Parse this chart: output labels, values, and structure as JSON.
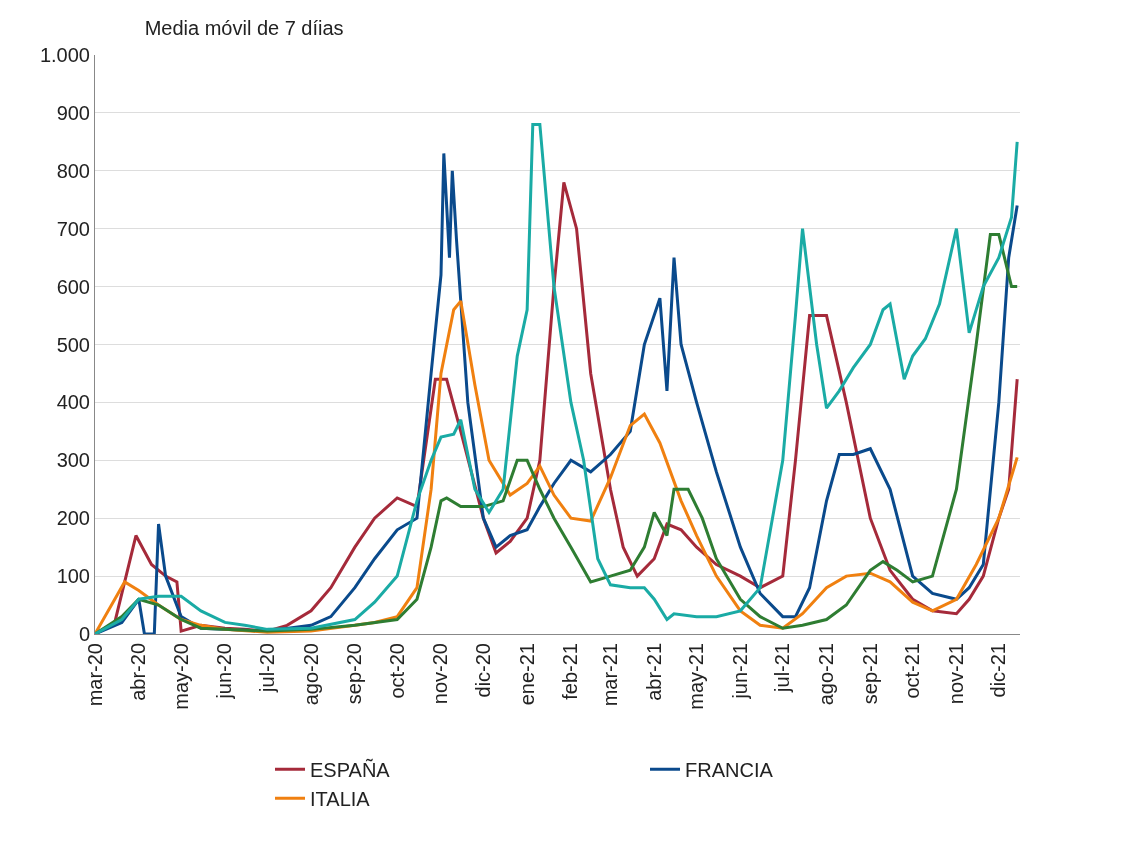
{
  "chart_data": {
    "type": "line",
    "title": "Media móvil de 7 díias",
    "xlim": [
      "2020-03-01",
      "2021-12-16"
    ],
    "xticks": [
      {
        "value": "2020-03-01",
        "label": "mar-20"
      },
      {
        "value": "2020-04-01",
        "label": "abr-20"
      },
      {
        "value": "2020-05-01",
        "label": "may-20"
      },
      {
        "value": "2020-06-01",
        "label": "jun-20"
      },
      {
        "value": "2020-07-01",
        "label": "jul-20"
      },
      {
        "value": "2020-08-01",
        "label": "ago-20"
      },
      {
        "value": "2020-09-01",
        "label": "sep-20"
      },
      {
        "value": "2020-10-01",
        "label": "oct-20"
      },
      {
        "value": "2020-11-01",
        "label": "nov-20"
      },
      {
        "value": "2020-12-01",
        "label": "dic-20"
      },
      {
        "value": "2021-01-01",
        "label": "ene-21"
      },
      {
        "value": "2021-02-01",
        "label": "feb-21"
      },
      {
        "value": "2021-03-01",
        "label": "mar-21"
      },
      {
        "value": "2021-04-01",
        "label": "abr-21"
      },
      {
        "value": "2021-05-01",
        "label": "may-21"
      },
      {
        "value": "2021-06-01",
        "label": "jun-21"
      },
      {
        "value": "2021-07-01",
        "label": "jul-21"
      },
      {
        "value": "2021-08-01",
        "label": "ago-21"
      },
      {
        "value": "2021-09-01",
        "label": "sep-21"
      },
      {
        "value": "2021-10-01",
        "label": "oct-21"
      },
      {
        "value": "2021-11-01",
        "label": "nov-21"
      },
      {
        "value": "2021-12-01",
        "label": "dic-21"
      }
    ],
    "ylim": [
      0,
      1000
    ],
    "yticks": [
      0,
      100,
      200,
      300,
      400,
      500,
      600,
      700,
      800,
      900,
      {
        "value": 1000,
        "label": "1.000"
      }
    ],
    "grid": "y",
    "legend": "bottom",
    "series": [
      {
        "name": "ESPAÑA",
        "color": "#a52a3a",
        "x": [
          "2020-03-01",
          "2020-03-15",
          "2020-03-30",
          "2020-04-10",
          "2020-04-20",
          "2020-04-28",
          "2020-05-01",
          "2020-05-15",
          "2020-06-01",
          "2020-06-15",
          "2020-07-01",
          "2020-07-15",
          "2020-08-01",
          "2020-08-15",
          "2020-09-01",
          "2020-09-15",
          "2020-10-01",
          "2020-10-15",
          "2020-10-28",
          "2020-11-05",
          "2020-11-15",
          "2020-12-01",
          "2020-12-10",
          "2020-12-20",
          "2021-01-01",
          "2021-01-10",
          "2021-01-20",
          "2021-01-27",
          "2021-02-05",
          "2021-02-15",
          "2021-03-01",
          "2021-03-10",
          "2021-03-20",
          "2021-04-01",
          "2021-04-10",
          "2021-04-20",
          "2021-05-01",
          "2021-05-15",
          "2021-06-01",
          "2021-06-15",
          "2021-07-01",
          "2021-07-10",
          "2021-07-20",
          "2021-08-01",
          "2021-08-15",
          "2021-09-01",
          "2021-09-15",
          "2021-10-01",
          "2021-10-15",
          "2021-11-01",
          "2021-11-10",
          "2021-11-20",
          "2021-12-01",
          "2021-12-08",
          "2021-12-14"
        ],
        "values": [
          0,
          20,
          170,
          120,
          100,
          90,
          5,
          15,
          10,
          8,
          5,
          15,
          40,
          80,
          150,
          200,
          235,
          220,
          440,
          440,
          350,
          200,
          140,
          160,
          200,
          300,
          600,
          780,
          700,
          450,
          250,
          150,
          100,
          130,
          190,
          180,
          150,
          120,
          100,
          80,
          100,
          300,
          550,
          550,
          400,
          200,
          110,
          60,
          40,
          35,
          60,
          100,
          200,
          250,
          440
        ]
      },
      {
        "name": "FRANCIA",
        "color": "#0a4a8c",
        "x": [
          "2020-03-01",
          "2020-03-20",
          "2020-04-01",
          "2020-04-05",
          "2020-04-12",
          "2020-04-15",
          "2020-04-20",
          "2020-05-01",
          "2020-05-15",
          "2020-06-01",
          "2020-07-01",
          "2020-08-01",
          "2020-08-15",
          "2020-09-01",
          "2020-09-15",
          "2020-10-01",
          "2020-10-15",
          "2020-10-25",
          "2020-11-01",
          "2020-11-03",
          "2020-11-07",
          "2020-11-09",
          "2020-11-12",
          "2020-11-20",
          "2020-12-01",
          "2020-12-10",
          "2020-12-20",
          "2021-01-01",
          "2021-01-10",
          "2021-01-20",
          "2021-02-01",
          "2021-02-15",
          "2021-03-01",
          "2021-03-15",
          "2021-03-25",
          "2021-04-05",
          "2021-04-10",
          "2021-04-15",
          "2021-04-20",
          "2021-05-01",
          "2021-05-15",
          "2021-06-01",
          "2021-06-15",
          "2021-07-01",
          "2021-07-10",
          "2021-07-20",
          "2021-08-01",
          "2021-08-10",
          "2021-08-20",
          "2021-09-01",
          "2021-09-15",
          "2021-10-01",
          "2021-10-15",
          "2021-11-01",
          "2021-11-10",
          "2021-11-20",
          "2021-12-01",
          "2021-12-08",
          "2021-12-14"
        ],
        "values": [
          0,
          20,
          60,
          0,
          0,
          190,
          100,
          30,
          10,
          8,
          5,
          15,
          30,
          80,
          130,
          180,
          200,
          450,
          620,
          830,
          650,
          800,
          680,
          400,
          200,
          150,
          170,
          180,
          220,
          260,
          300,
          280,
          310,
          350,
          500,
          580,
          420,
          650,
          500,
          400,
          280,
          150,
          70,
          30,
          30,
          80,
          230,
          310,
          310,
          320,
          250,
          100,
          70,
          60,
          80,
          120,
          400,
          650,
          740
        ]
      },
      {
        "name": "ITALIA",
        "color": "#f08010",
        "x": [
          "2020-03-01",
          "2020-03-15",
          "2020-03-22",
          "2020-04-01",
          "2020-04-15",
          "2020-05-01",
          "2020-05-15",
          "2020-06-01",
          "2020-07-01",
          "2020-08-01",
          "2020-09-01",
          "2020-09-15",
          "2020-10-01",
          "2020-10-15",
          "2020-10-25",
          "2020-11-01",
          "2020-11-10",
          "2020-11-15",
          "2020-11-25",
          "2020-12-05",
          "2020-12-20",
          "2021-01-01",
          "2021-01-10",
          "2021-01-20",
          "2021-02-01",
          "2021-02-15",
          "2021-03-01",
          "2021-03-15",
          "2021-03-25",
          "2021-04-05",
          "2021-04-20",
          "2021-05-01",
          "2021-05-15",
          "2021-06-01",
          "2021-06-15",
          "2021-07-01",
          "2021-07-15",
          "2021-08-01",
          "2021-08-15",
          "2021-09-01",
          "2021-09-15",
          "2021-10-01",
          "2021-10-15",
          "2021-11-01",
          "2021-11-15",
          "2021-12-01",
          "2021-12-14"
        ],
        "values": [
          0,
          60,
          90,
          75,
          50,
          25,
          15,
          8,
          3,
          5,
          15,
          20,
          30,
          80,
          250,
          450,
          560,
          575,
          430,
          300,
          240,
          260,
          290,
          240,
          200,
          195,
          270,
          360,
          380,
          330,
          230,
          170,
          100,
          40,
          15,
          10,
          35,
          80,
          100,
          105,
          90,
          55,
          40,
          60,
          120,
          200,
          305
        ]
      },
      {
        "color": "#2e7d32",
        "x": [
          "2020-03-01",
          "2020-03-20",
          "2020-04-01",
          "2020-04-15",
          "2020-05-01",
          "2020-05-15",
          "2020-06-01",
          "2020-07-01",
          "2020-08-01",
          "2020-09-01",
          "2020-10-01",
          "2020-10-15",
          "2020-10-25",
          "2020-11-01",
          "2020-11-05",
          "2020-11-15",
          "2020-12-01",
          "2020-12-15",
          "2020-12-25",
          "2021-01-01",
          "2021-01-10",
          "2021-01-20",
          "2021-02-01",
          "2021-02-15",
          "2021-03-01",
          "2021-03-15",
          "2021-03-25",
          "2021-04-01",
          "2021-04-10",
          "2021-04-15",
          "2021-04-25",
          "2021-05-05",
          "2021-05-15",
          "2021-06-01",
          "2021-06-15",
          "2021-07-01",
          "2021-07-15",
          "2021-08-01",
          "2021-08-15",
          "2021-09-01",
          "2021-09-10",
          "2021-09-20",
          "2021-10-01",
          "2021-10-15",
          "2021-11-01",
          "2021-11-15",
          "2021-11-25",
          "2021-12-01",
          "2021-12-10",
          "2021-12-14"
        ],
        "values": [
          0,
          30,
          60,
          50,
          25,
          10,
          8,
          5,
          8,
          15,
          25,
          60,
          150,
          230,
          235,
          220,
          220,
          230,
          300,
          300,
          250,
          200,
          150,
          90,
          100,
          110,
          150,
          210,
          170,
          250,
          250,
          200,
          130,
          60,
          30,
          10,
          15,
          25,
          50,
          110,
          125,
          110,
          90,
          100,
          250,
          500,
          690,
          690,
          600,
          600
        ]
      },
      {
        "color": "#1aaba5",
        "x": [
          "2020-03-01",
          "2020-03-20",
          "2020-04-01",
          "2020-04-15",
          "2020-05-01",
          "2020-05-15",
          "2020-06-01",
          "2020-06-15",
          "2020-07-01",
          "2020-08-01",
          "2020-09-01",
          "2020-09-15",
          "2020-10-01",
          "2020-10-15",
          "2020-10-25",
          "2020-11-01",
          "2020-11-10",
          "2020-11-15",
          "2020-11-25",
          "2020-12-05",
          "2020-12-15",
          "2020-12-25",
          "2021-01-01",
          "2021-01-05",
          "2021-01-10",
          "2021-01-20",
          "2021-02-01",
          "2021-02-10",
          "2021-02-20",
          "2021-03-01",
          "2021-03-15",
          "2021-03-25",
          "2021-04-01",
          "2021-04-10",
          "2021-04-15",
          "2021-05-01",
          "2021-05-15",
          "2021-06-01",
          "2021-06-15",
          "2021-07-01",
          "2021-07-10",
          "2021-07-15",
          "2021-07-25",
          "2021-08-01",
          "2021-08-10",
          "2021-08-20",
          "2021-09-01",
          "2021-09-10",
          "2021-09-15",
          "2021-09-25",
          "2021-10-01",
          "2021-10-10",
          "2021-10-20",
          "2021-11-01",
          "2021-11-10",
          "2021-11-20",
          "2021-12-01",
          "2021-12-10",
          "2021-12-14"
        ],
        "values": [
          0,
          25,
          60,
          65,
          65,
          40,
          20,
          15,
          8,
          10,
          25,
          55,
          100,
          230,
          300,
          340,
          345,
          370,
          250,
          210,
          250,
          480,
          560,
          880,
          880,
          600,
          400,
          300,
          130,
          85,
          80,
          80,
          60,
          25,
          35,
          30,
          30,
          40,
          80,
          300,
          550,
          700,
          500,
          390,
          420,
          460,
          500,
          560,
          570,
          440,
          480,
          510,
          570,
          700,
          520,
          600,
          650,
          720,
          850
        ]
      }
    ]
  }
}
